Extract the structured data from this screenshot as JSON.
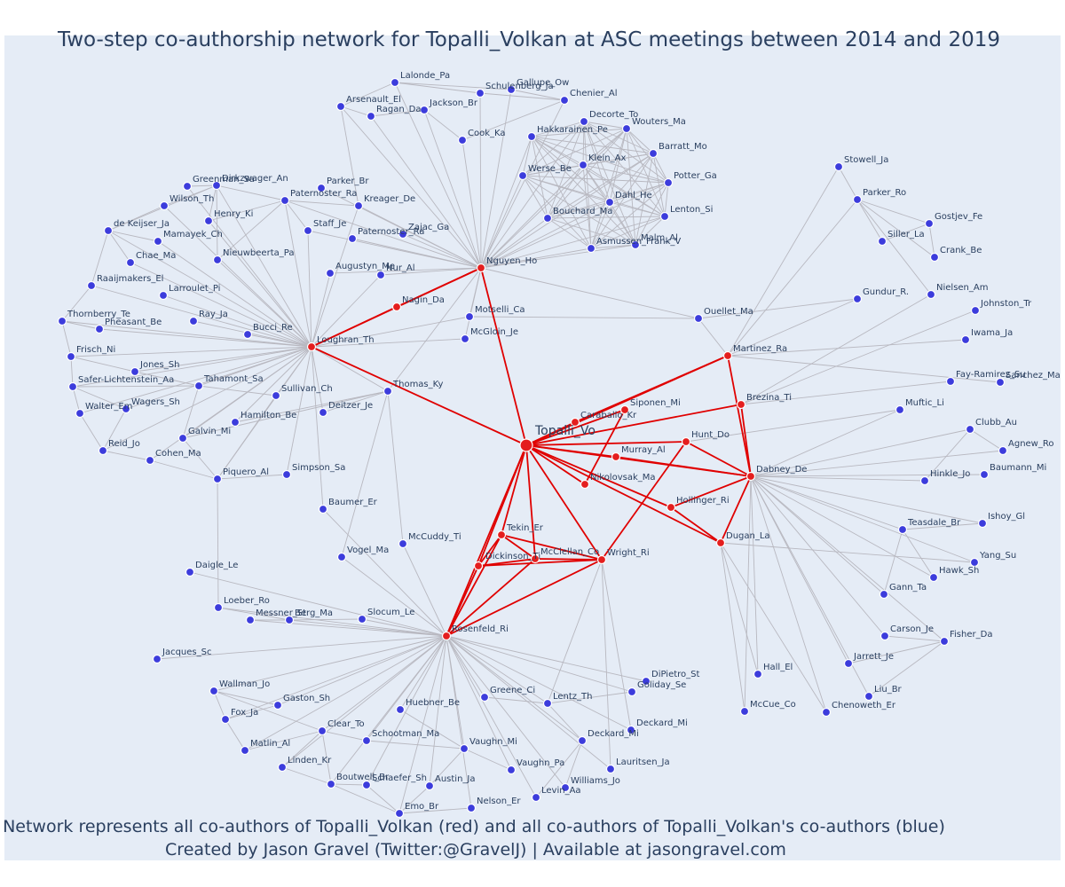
{
  "title": "Two-step co-authorship network for Topalli_Volkan at ASC meetings between 2014 and 2019",
  "caption": {
    "line1": "Network represents all co-authors of Topalli_Volkan (red) and all co-authors of Topalli_Volkan's co-authors (blue)",
    "line2": "Created by Jason Gravel (Twitter:@GravelJ) | Available at jasongravel.com"
  },
  "colors": {
    "background": "#e5ecf6",
    "text": "#2a3f5f",
    "red_node": "#e41e1e",
    "blue_node": "#3c3cdc",
    "red_edge": "#e00000",
    "gray_edge": "#b8b8c0"
  },
  "nodes": [
    {
      "id": "topalli",
      "label": "Topalli_Vo",
      "group": "ego"
    },
    {
      "id": "nguyen",
      "label": "Nguyen_Ho",
      "group": "red"
    },
    {
      "id": "loughran",
      "label": "Loughran_Th",
      "group": "red"
    },
    {
      "id": "nagin",
      "label": "Nagin_Da",
      "group": "red"
    },
    {
      "id": "caraballo",
      "label": "Caraballo_Kr",
      "group": "red"
    },
    {
      "id": "siponen",
      "label": "Siponen_Mi",
      "group": "red"
    },
    {
      "id": "murray",
      "label": "Murray_Al",
      "group": "red"
    },
    {
      "id": "nikolovsak",
      "label": "Nikolovsak_Ma",
      "group": "red"
    },
    {
      "id": "hunt",
      "label": "Hunt_Do",
      "group": "red"
    },
    {
      "id": "martinez",
      "label": "Martinez_Ra",
      "group": "red"
    },
    {
      "id": "brezina",
      "label": "Brezina_Ti",
      "group": "red"
    },
    {
      "id": "dabney",
      "label": "Dabney_De",
      "group": "red"
    },
    {
      "id": "hollinger",
      "label": "Hollinger_Ri",
      "group": "red"
    },
    {
      "id": "dugan",
      "label": "Dugan_La",
      "group": "red"
    },
    {
      "id": "tekin",
      "label": "Tekin_Er",
      "group": "red"
    },
    {
      "id": "dickinson",
      "label": "Dickinson_Ti",
      "group": "red"
    },
    {
      "id": "mcclellan",
      "label": "McClellan_Co",
      "group": "red"
    },
    {
      "id": "wright",
      "label": "Wright_Ri",
      "group": "red"
    },
    {
      "id": "rosenfeld",
      "label": "Rosenfeld_Ri",
      "group": "red"
    },
    {
      "id": "lalonde",
      "label": "Lalonde_Pa",
      "group": "blue"
    },
    {
      "id": "schulenberg",
      "label": "Schulenberg_Ja",
      "group": "blue"
    },
    {
      "id": "gallupe",
      "label": "Gallupe_Ow",
      "group": "blue"
    },
    {
      "id": "chenier",
      "label": "Chenier_Al",
      "group": "blue"
    },
    {
      "id": "arsenault",
      "label": "Arsenault_El",
      "group": "blue"
    },
    {
      "id": "ragan",
      "label": "Ragan_Da",
      "group": "blue"
    },
    {
      "id": "jacksonbr",
      "label": "Jackson_Br",
      "group": "blue"
    },
    {
      "id": "decorte",
      "label": "Decorte_To",
      "group": "blue"
    },
    {
      "id": "wouters",
      "label": "Wouters_Ma",
      "group": "blue"
    },
    {
      "id": "cook",
      "label": "Cook_Ka",
      "group": "blue"
    },
    {
      "id": "hakkarainen",
      "label": "Hakkarainen_Pe",
      "group": "blue"
    },
    {
      "id": "barratt",
      "label": "Barratt_Mo",
      "group": "blue"
    },
    {
      "id": "klein",
      "label": "Klein_Ax",
      "group": "blue"
    },
    {
      "id": "werse",
      "label": "Werse_Be",
      "group": "blue"
    },
    {
      "id": "potter",
      "label": "Potter_Ga",
      "group": "blue"
    },
    {
      "id": "dahl",
      "label": "Dahl_He",
      "group": "blue"
    },
    {
      "id": "bouchard",
      "label": "Bouchard_Ma",
      "group": "blue"
    },
    {
      "id": "lenton",
      "label": "Lenton_Si",
      "group": "blue"
    },
    {
      "id": "asmussen",
      "label": "Asmussen_Frank_V",
      "group": "blue"
    },
    {
      "id": "malm",
      "label": "Malm_Al",
      "group": "blue"
    },
    {
      "id": "greenman",
      "label": "Greenman_Sa",
      "group": "blue"
    },
    {
      "id": "dirkzwager",
      "label": "Dirkzwager_An",
      "group": "blue"
    },
    {
      "id": "wilson",
      "label": "Wilson_Th",
      "group": "blue"
    },
    {
      "id": "parkerbr",
      "label": "Parker_Br",
      "group": "blue"
    },
    {
      "id": "paternosterra",
      "label": "Paternoster_Ra",
      "group": "blue"
    },
    {
      "id": "kreager",
      "label": "Kreager_De",
      "group": "blue"
    },
    {
      "id": "henry",
      "label": "Henry_Ki",
      "group": "blue"
    },
    {
      "id": "dekeijser",
      "label": "de Keijser_Ja",
      "group": "blue"
    },
    {
      "id": "staff",
      "label": "Staff_Je",
      "group": "blue"
    },
    {
      "id": "zajac",
      "label": "Zajac_Ga",
      "group": "blue"
    },
    {
      "id": "paternosterra2",
      "label": "Paternoster_Ra",
      "group": "blue"
    },
    {
      "id": "mamayek",
      "label": "Mamayek_Ch",
      "group": "blue"
    },
    {
      "id": "chae",
      "label": "Chae_Ma",
      "group": "blue"
    },
    {
      "id": "nieuwbeerta",
      "label": "Nieuwbeerta_Pa",
      "group": "blue"
    },
    {
      "id": "raaijmakers",
      "label": "Raaijmakers_El",
      "group": "blue"
    },
    {
      "id": "augustyn",
      "label": "Augustyn_Me",
      "group": "blue"
    },
    {
      "id": "nur",
      "label": "Nur_Al",
      "group": "blue"
    },
    {
      "id": "larroulet",
      "label": "Larroulet_Pi",
      "group": "blue"
    },
    {
      "id": "thornberry",
      "label": "Thornberry_Te",
      "group": "blue"
    },
    {
      "id": "pheasant",
      "label": "Pheasant_Be",
      "group": "blue"
    },
    {
      "id": "ray",
      "label": "Ray_Ja",
      "group": "blue"
    },
    {
      "id": "bucci",
      "label": "Bucci_Re",
      "group": "blue"
    },
    {
      "id": "motselli",
      "label": "Motselli_Ca",
      "group": "blue"
    },
    {
      "id": "mcgloin",
      "label": "McGloin_Je",
      "group": "blue"
    },
    {
      "id": "frisch",
      "label": "Frisch_Ni",
      "group": "blue"
    },
    {
      "id": "jonessh",
      "label": "Jones_Sh",
      "group": "blue"
    },
    {
      "id": "safer",
      "label": "Safer-Lichtenstein_Aa",
      "group": "blue"
    },
    {
      "id": "tahamont",
      "label": "Tahamont_Sa",
      "group": "blue"
    },
    {
      "id": "thomas",
      "label": "Thomas_Ky",
      "group": "blue"
    },
    {
      "id": "sullivan",
      "label": "Sullivan_Ch",
      "group": "blue"
    },
    {
      "id": "wagers",
      "label": "Wagers_Sh",
      "group": "blue"
    },
    {
      "id": "walter",
      "label": "Walter_Em",
      "group": "blue"
    },
    {
      "id": "hamilton",
      "label": "Hamilton_Be",
      "group": "blue"
    },
    {
      "id": "deitzer",
      "label": "Deitzer_Je",
      "group": "blue"
    },
    {
      "id": "galvin",
      "label": "Galvin_Mi",
      "group": "blue"
    },
    {
      "id": "reid",
      "label": "Reid_Jo",
      "group": "blue"
    },
    {
      "id": "cohen",
      "label": "Cohen_Ma",
      "group": "blue"
    },
    {
      "id": "piquero",
      "label": "Piquero_Al",
      "group": "blue"
    },
    {
      "id": "simpson",
      "label": "Simpson_Sa",
      "group": "blue"
    },
    {
      "id": "baumer",
      "label": "Baumer_Er",
      "group": "blue"
    },
    {
      "id": "mccuddy",
      "label": "McCuddy_Ti",
      "group": "blue"
    },
    {
      "id": "vogel",
      "label": "Vogel_Ma",
      "group": "blue"
    },
    {
      "id": "daigle",
      "label": "Daigle_Le",
      "group": "blue"
    },
    {
      "id": "loeber",
      "label": "Loeber_Ro",
      "group": "blue"
    },
    {
      "id": "messner",
      "label": "Messner_St",
      "group": "blue"
    },
    {
      "id": "berg",
      "label": "Berg_Ma",
      "group": "blue"
    },
    {
      "id": "slocum",
      "label": "Slocum_Le",
      "group": "blue"
    },
    {
      "id": "jacques",
      "label": "Jacques_Sc",
      "group": "blue"
    },
    {
      "id": "stowell",
      "label": "Stowell_Ja",
      "group": "blue"
    },
    {
      "id": "parkerro",
      "label": "Parker_Ro",
      "group": "blue"
    },
    {
      "id": "gostjev",
      "label": "Gostjev_Fe",
      "group": "blue"
    },
    {
      "id": "siller",
      "label": "Siller_La",
      "group": "blue"
    },
    {
      "id": "crank",
      "label": "Crank_Be",
      "group": "blue"
    },
    {
      "id": "gundur",
      "label": "Gundur_R.",
      "group": "blue"
    },
    {
      "id": "nielsen",
      "label": "Nielsen_Am",
      "group": "blue"
    },
    {
      "id": "johnston",
      "label": "Johnston_Tr",
      "group": "blue"
    },
    {
      "id": "ouellet",
      "label": "Ouellet_Ma",
      "group": "blue"
    },
    {
      "id": "iwama",
      "label": "Iwama_Ja",
      "group": "blue"
    },
    {
      "id": "fayramirez",
      "label": "Fay-Ramirez_Su",
      "group": "blue"
    },
    {
      "id": "sanchez",
      "label": "Sanchez_Ma",
      "group": "blue"
    },
    {
      "id": "muftic",
      "label": "Muftic_Li",
      "group": "blue"
    },
    {
      "id": "clubb",
      "label": "Clubb_Au",
      "group": "blue"
    },
    {
      "id": "agnew",
      "label": "Agnew_Ro",
      "group": "blue"
    },
    {
      "id": "hinkle",
      "label": "Hinkle_Jo",
      "group": "blue"
    },
    {
      "id": "baumann",
      "label": "Baumann_Mi",
      "group": "blue"
    },
    {
      "id": "teasdale",
      "label": "Teasdale_Br",
      "group": "blue"
    },
    {
      "id": "ishoy",
      "label": "Ishoy_Gl",
      "group": "blue"
    },
    {
      "id": "yang",
      "label": "Yang_Su",
      "group": "blue"
    },
    {
      "id": "hawk",
      "label": "Hawk_Sh",
      "group": "blue"
    },
    {
      "id": "gann",
      "label": "Gann_Ta",
      "group": "blue"
    },
    {
      "id": "carson",
      "label": "Carson_Je",
      "group": "blue"
    },
    {
      "id": "fisher",
      "label": "Fisher_Da",
      "group": "blue"
    },
    {
      "id": "jarrett",
      "label": "Jarrett_Je",
      "group": "blue"
    },
    {
      "id": "liu",
      "label": "Liu_Br",
      "group": "blue"
    },
    {
      "id": "chenoweth",
      "label": "Chenoweth_Er",
      "group": "blue"
    },
    {
      "id": "hall",
      "label": "Hall_El",
      "group": "blue"
    },
    {
      "id": "mccue",
      "label": "McCue_Co",
      "group": "blue"
    },
    {
      "id": "dipietro",
      "label": "DiPietro_St",
      "group": "blue"
    },
    {
      "id": "goliday",
      "label": "Goliday_Se",
      "group": "blue"
    },
    {
      "id": "deckard1",
      "label": "Deckard_Mi",
      "group": "blue"
    },
    {
      "id": "deckard2",
      "label": "Deckard_Mi",
      "group": "blue"
    },
    {
      "id": "wallman",
      "label": "Wallman_Jo",
      "group": "blue"
    },
    {
      "id": "gaston",
      "label": "Gaston_Sh",
      "group": "blue"
    },
    {
      "id": "greene",
      "label": "Greene_Ci",
      "group": "blue"
    },
    {
      "id": "lentz",
      "label": "Lentz_Th",
      "group": "blue"
    },
    {
      "id": "huebner",
      "label": "Huebner_Be",
      "group": "blue"
    },
    {
      "id": "fox",
      "label": "Fox_Ja",
      "group": "blue"
    },
    {
      "id": "clear",
      "label": "Clear_To",
      "group": "blue"
    },
    {
      "id": "matlin",
      "label": "Matlin_Al",
      "group": "blue"
    },
    {
      "id": "schootman",
      "label": "Schootman_Ma",
      "group": "blue"
    },
    {
      "id": "vaughnmi",
      "label": "Vaughn_Mi",
      "group": "blue"
    },
    {
      "id": "lauritsen",
      "label": "Lauritsen_Ja",
      "group": "blue"
    },
    {
      "id": "linden",
      "label": "Linden_Kr",
      "group": "blue"
    },
    {
      "id": "vaughnpa",
      "label": "Vaughn_Pa",
      "group": "blue"
    },
    {
      "id": "williams",
      "label": "Williams_Jo",
      "group": "blue"
    },
    {
      "id": "boutwell",
      "label": "Boutwell_Br",
      "group": "blue"
    },
    {
      "id": "schaefer",
      "label": "Schaefer_Sh",
      "group": "blue"
    },
    {
      "id": "austin",
      "label": "Austin_Ja",
      "group": "blue"
    },
    {
      "id": "levin",
      "label": "Levin_Aa",
      "group": "blue"
    },
    {
      "id": "nelson",
      "label": "Nelson_Er",
      "group": "blue"
    },
    {
      "id": "emo",
      "label": "Emo_Br",
      "group": "blue"
    }
  ]
}
